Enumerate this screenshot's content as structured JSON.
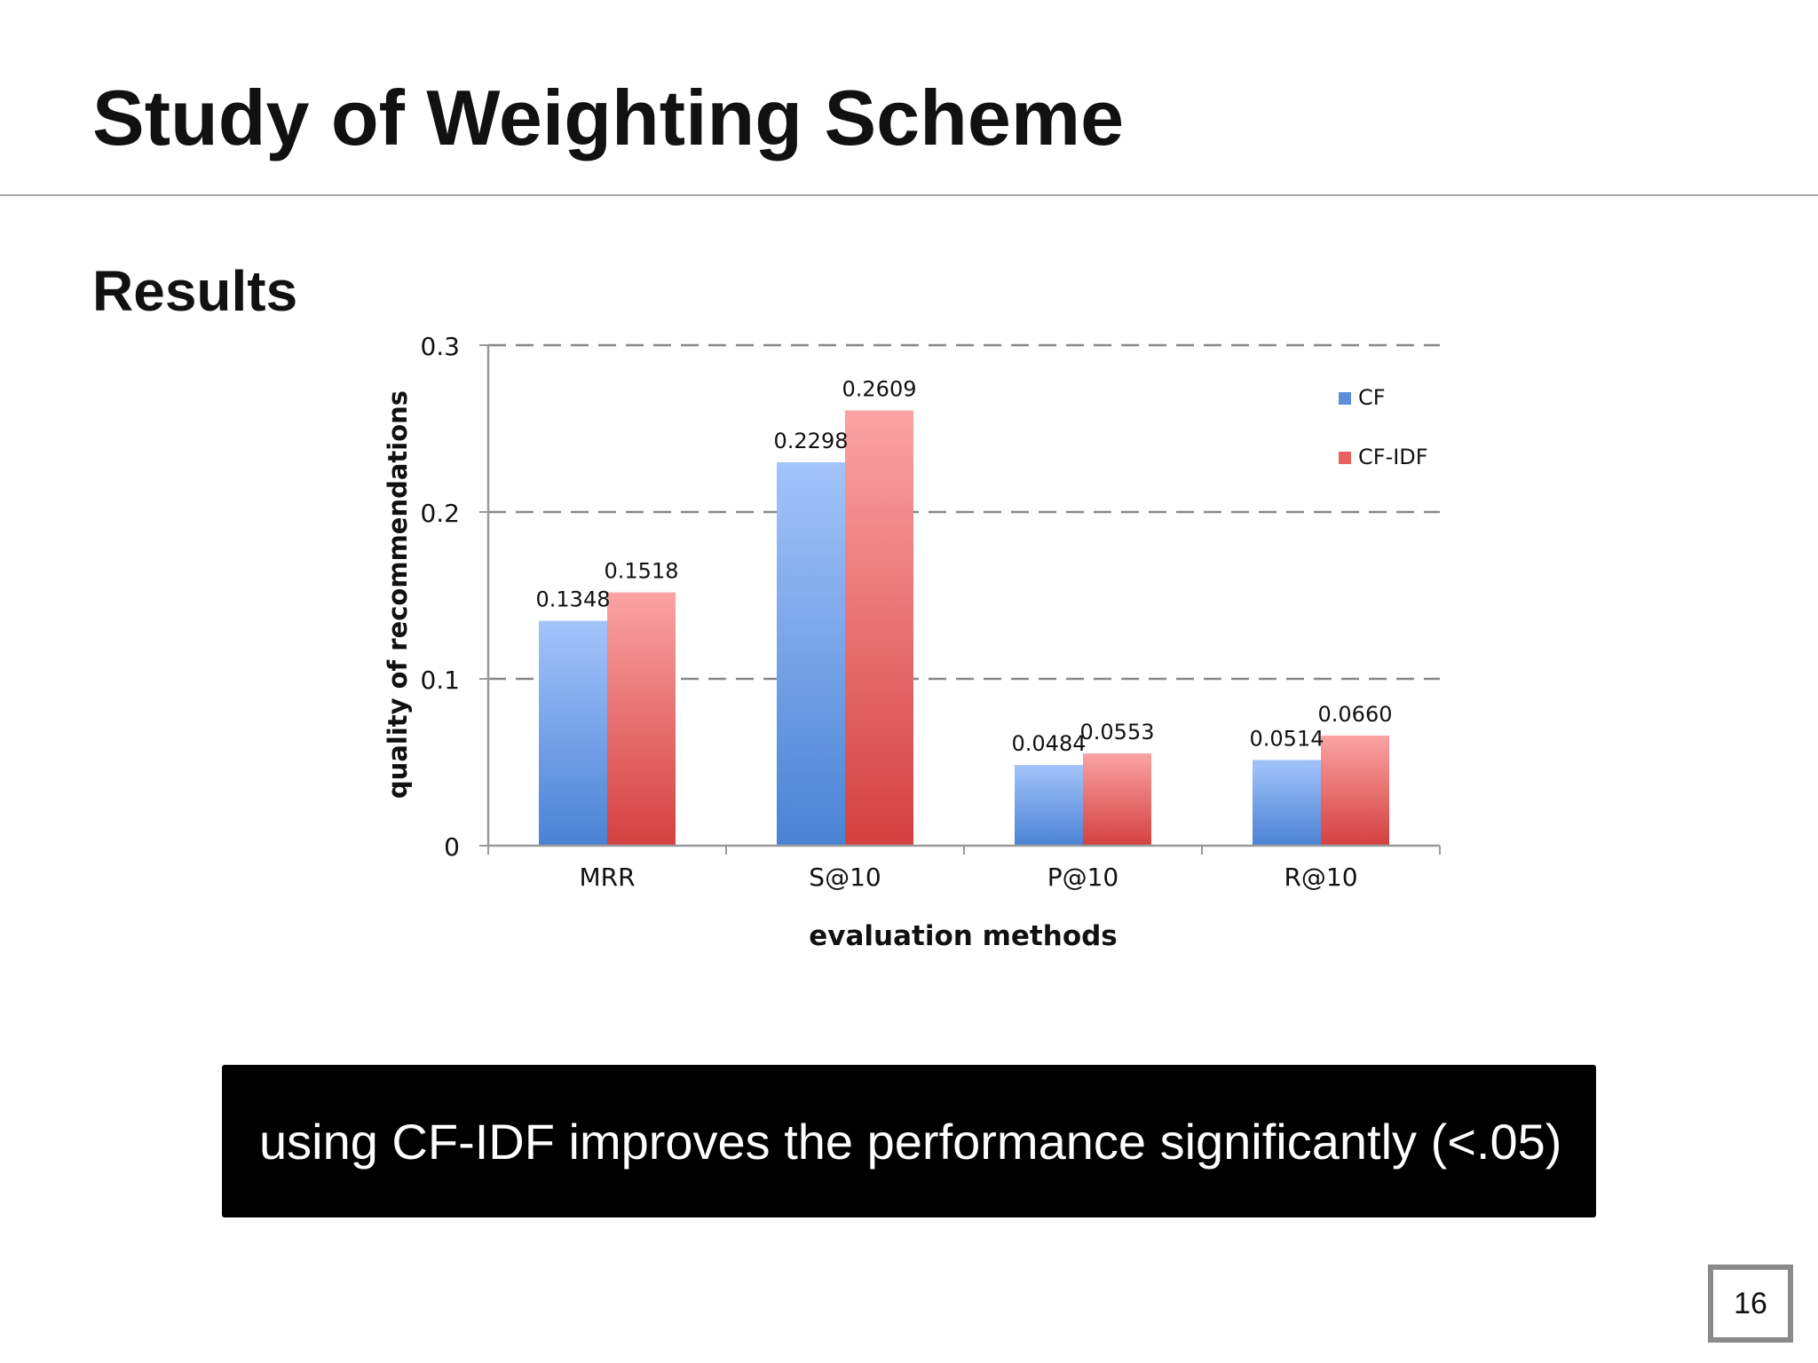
{
  "slide": {
    "title": "Study of Weighting Scheme",
    "section_heading": "Results",
    "callout": "using CF-IDF improves the performance significantly (<.05)",
    "page_number": "16"
  },
  "colors": {
    "cf": "#5b8fdc",
    "cf_idf": "#e86060",
    "gridline": "#888888",
    "axis": "#999999",
    "text": "#111111"
  },
  "chart_data": {
    "type": "bar",
    "title": "",
    "xlabel": "evaluation methods",
    "ylabel": "quality of recommendations",
    "categories": [
      "MRR",
      "S@10",
      "P@10",
      "R@10"
    ],
    "series": [
      {
        "name": "CF",
        "values": [
          0.1348,
          0.2298,
          0.0484,
          0.0514
        ],
        "labels": [
          "0.1348",
          "0.2298",
          "0.0484",
          "0.0514"
        ]
      },
      {
        "name": "CF-IDF",
        "values": [
          0.1518,
          0.2609,
          0.0553,
          0.066
        ],
        "labels": [
          "0.1518",
          "0.2609",
          "0.0553",
          "0.0660"
        ]
      }
    ],
    "ylim": [
      0,
      0.3
    ],
    "yticks": [
      0,
      0.1,
      0.2,
      0.3
    ],
    "ytick_labels": [
      "0",
      "0.1",
      "0.2",
      "0.3"
    ],
    "grid": "dashed horizontal",
    "legend_position": "top-right"
  }
}
